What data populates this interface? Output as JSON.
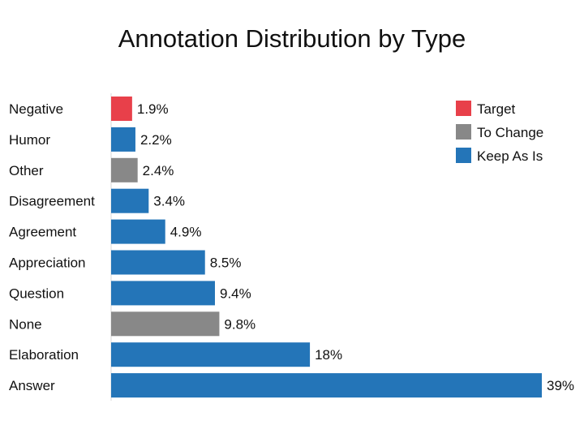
{
  "chart_data": {
    "type": "bar",
    "orientation": "horizontal",
    "title": "Annotation Distribution by Type",
    "categories": [
      "Negative",
      "Humor",
      "Other",
      "Disagreement",
      "Agreement",
      "Appreciation",
      "Question",
      "None",
      "Elaboration",
      "Answer"
    ],
    "values": [
      1.9,
      2.2,
      2.4,
      3.4,
      4.9,
      8.5,
      9.4,
      9.8,
      18,
      39
    ],
    "value_labels": [
      "1.9%",
      "2.2%",
      "2.4%",
      "3.4%",
      "4.9%",
      "8.5%",
      "9.4%",
      "9.8%",
      "18%",
      "39%"
    ],
    "groups": [
      "Target",
      "Keep As Is",
      "To Change",
      "Keep As Is",
      "Keep As Is",
      "Keep As Is",
      "Keep As Is",
      "To Change",
      "Keep As Is",
      "Keep As Is"
    ],
    "legend": [
      {
        "name": "Target",
        "color": "#e8404a"
      },
      {
        "name": "To Change",
        "color": "#888888"
      },
      {
        "name": "Keep As Is",
        "color": "#2475b8"
      }
    ],
    "legend_position": "top-right",
    "xlim": [
      0,
      39
    ],
    "grid": false,
    "xlabel": "",
    "ylabel": ""
  }
}
